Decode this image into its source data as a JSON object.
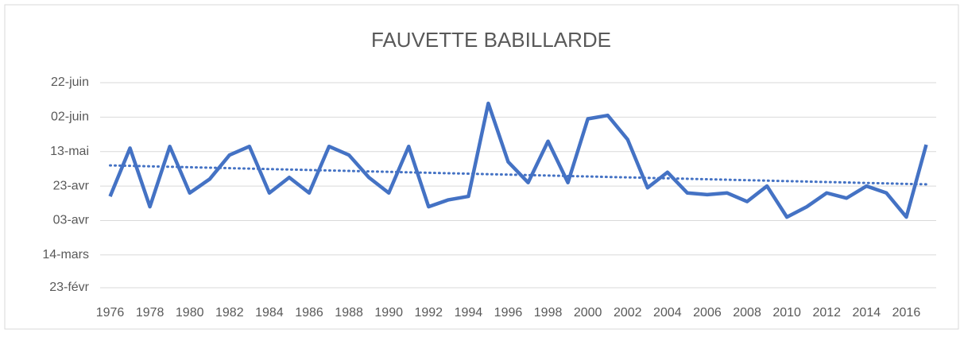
{
  "chart_data": {
    "type": "line",
    "title": "FAUVETTE BABILLARDE",
    "categories": [
      "1976",
      null,
      "1978",
      null,
      "1980",
      null,
      "1982",
      null,
      "1984",
      null,
      "1986",
      null,
      "1988",
      null,
      "1990",
      null,
      "1992",
      null,
      "1994",
      null,
      "1996",
      null,
      "1998",
      null,
      "2000",
      null,
      "2002",
      null,
      "2004",
      null,
      "2006",
      null,
      "2008",
      null,
      "2010",
      null,
      "2012",
      null,
      "2014",
      null,
      "2016",
      null
    ],
    "series": [
      {
        "color": "#4472c4",
        "values": [
          107,
          135,
          101,
          136,
          109,
          117,
          131,
          136,
          109,
          118,
          109,
          136,
          131,
          118,
          109,
          136,
          101,
          105,
          107,
          161,
          127,
          115,
          139,
          115,
          152,
          154,
          140,
          112,
          121,
          109,
          108,
          109,
          104,
          113,
          95,
          101,
          109,
          106,
          113,
          109,
          95,
          137
        ]
      }
    ],
    "trend": {
      "color": "#4472c4",
      "style": "dotted",
      "values": [
        125,
        114
      ]
    },
    "ylim": [
      54,
      173
    ],
    "yticks": [
      {
        "value": 54,
        "label": "23-févr"
      },
      {
        "value": 73,
        "label": "14-mars"
      },
      {
        "value": 93,
        "label": "03-avr"
      },
      {
        "value": 113,
        "label": "23-avr"
      },
      {
        "value": 133,
        "label": "13-mai"
      },
      {
        "value": 153,
        "label": "02-juin"
      },
      {
        "value": 173,
        "label": "22-juin"
      }
    ],
    "grid": true
  }
}
